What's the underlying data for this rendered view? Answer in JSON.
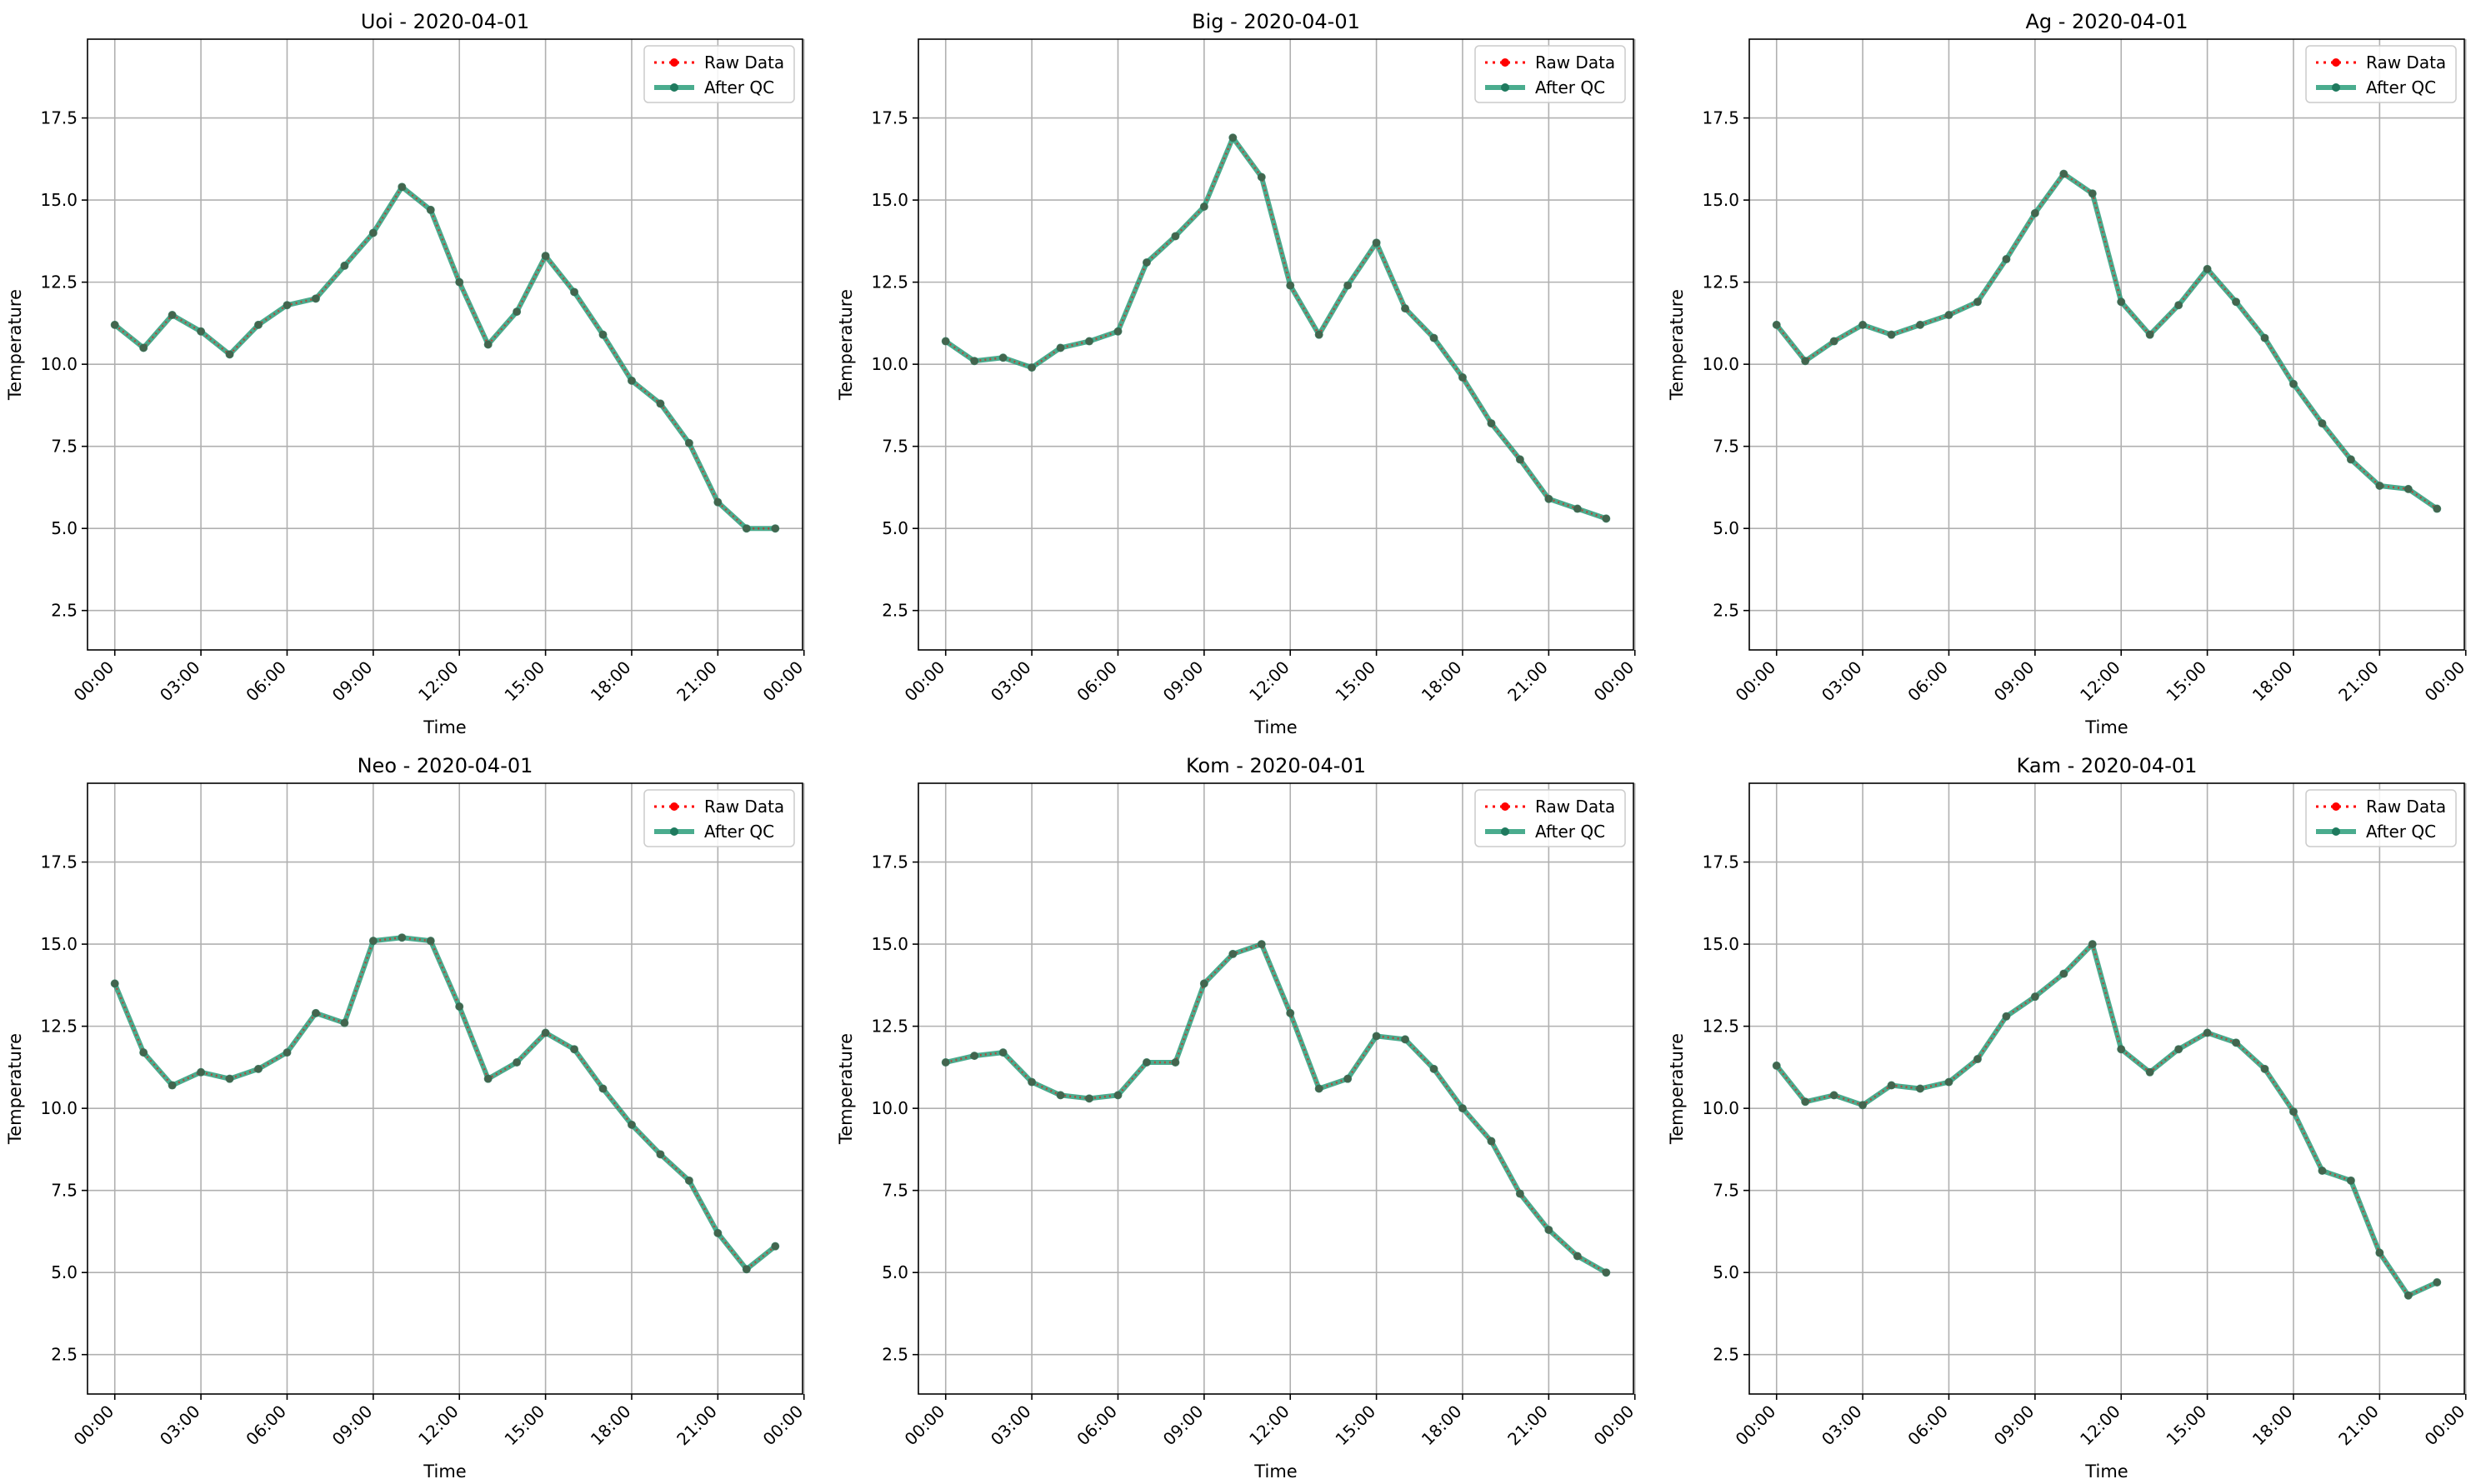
{
  "chart_data": [
    {
      "type": "line",
      "title": "Uoi - 2020-04-01",
      "xlabel": "Time",
      "ylabel": "Temperature",
      "xlim": [
        -0.95,
        23.95
      ],
      "ylim": [
        1.3,
        19.9
      ],
      "x_ticks": [
        0,
        3,
        6,
        9,
        12,
        15,
        18,
        21,
        24
      ],
      "x_tick_labels": [
        "00:00",
        "03:00",
        "06:00",
        "09:00",
        "12:00",
        "15:00",
        "18:00",
        "21:00",
        "00:00"
      ],
      "y_ticks": [
        2.5,
        5.0,
        7.5,
        10.0,
        12.5,
        15.0,
        17.5
      ],
      "y_tick_labels": [
        "2.5",
        "5.0",
        "7.5",
        "10.0",
        "12.5",
        "15.0",
        "17.5"
      ],
      "grid": true,
      "legend": "upper right",
      "x": [
        0,
        1,
        2,
        3,
        4,
        5,
        6,
        7,
        8,
        9,
        10,
        11,
        12,
        13,
        14,
        15,
        16,
        17,
        18,
        19,
        20,
        21,
        22,
        23
      ],
      "series": [
        {
          "name": "Raw Data",
          "color": "#ff0000",
          "style": "dotted",
          "values": [
            11.2,
            10.5,
            11.5,
            11.0,
            10.3,
            11.2,
            11.8,
            12.0,
            13.0,
            14.0,
            15.4,
            14.7,
            12.5,
            10.6,
            11.6,
            13.3,
            12.2,
            10.9,
            9.5,
            8.8,
            7.6,
            5.8,
            5.0,
            5.0
          ]
        },
        {
          "name": "After QC",
          "color": "#2a9d7a",
          "style": "solid",
          "values": [
            11.2,
            10.5,
            11.5,
            11.0,
            10.3,
            11.2,
            11.8,
            12.0,
            13.0,
            14.0,
            15.4,
            14.7,
            12.5,
            10.6,
            11.6,
            13.3,
            12.2,
            10.9,
            9.5,
            8.8,
            7.6,
            5.8,
            5.0,
            5.0
          ]
        }
      ]
    },
    {
      "type": "line",
      "title": "Big - 2020-04-01",
      "xlabel": "Time",
      "ylabel": "Temperature",
      "xlim": [
        -0.95,
        23.95
      ],
      "ylim": [
        1.3,
        19.9
      ],
      "x_ticks": [
        0,
        3,
        6,
        9,
        12,
        15,
        18,
        21,
        24
      ],
      "x_tick_labels": [
        "00:00",
        "03:00",
        "06:00",
        "09:00",
        "12:00",
        "15:00",
        "18:00",
        "21:00",
        "00:00"
      ],
      "y_ticks": [
        2.5,
        5.0,
        7.5,
        10.0,
        12.5,
        15.0,
        17.5
      ],
      "y_tick_labels": [
        "2.5",
        "5.0",
        "7.5",
        "10.0",
        "12.5",
        "15.0",
        "17.5"
      ],
      "grid": true,
      "legend": "upper right",
      "x": [
        0,
        1,
        2,
        3,
        4,
        5,
        6,
        7,
        8,
        9,
        10,
        11,
        12,
        13,
        14,
        15,
        16,
        17,
        18,
        19,
        20,
        21,
        22,
        23
      ],
      "series": [
        {
          "name": "Raw Data",
          "color": "#ff0000",
          "style": "dotted",
          "values": [
            10.7,
            10.1,
            10.2,
            9.9,
            10.5,
            10.7,
            11.0,
            13.1,
            13.9,
            14.8,
            16.9,
            15.7,
            12.4,
            10.9,
            12.4,
            13.7,
            11.7,
            10.8,
            9.6,
            8.2,
            7.1,
            5.9,
            5.6,
            5.3
          ]
        },
        {
          "name": "After QC",
          "color": "#2a9d7a",
          "style": "solid",
          "values": [
            10.7,
            10.1,
            10.2,
            9.9,
            10.5,
            10.7,
            11.0,
            13.1,
            13.9,
            14.8,
            16.9,
            15.7,
            12.4,
            10.9,
            12.4,
            13.7,
            11.7,
            10.8,
            9.6,
            8.2,
            7.1,
            5.9,
            5.6,
            5.3
          ]
        }
      ]
    },
    {
      "type": "line",
      "title": "Ag - 2020-04-01",
      "xlabel": "Time",
      "ylabel": "Temperature",
      "xlim": [
        -0.95,
        23.95
      ],
      "ylim": [
        1.3,
        19.9
      ],
      "x_ticks": [
        0,
        3,
        6,
        9,
        12,
        15,
        18,
        21,
        24
      ],
      "x_tick_labels": [
        "00:00",
        "03:00",
        "06:00",
        "09:00",
        "12:00",
        "15:00",
        "18:00",
        "21:00",
        "00:00"
      ],
      "y_ticks": [
        2.5,
        5.0,
        7.5,
        10.0,
        12.5,
        15.0,
        17.5
      ],
      "y_tick_labels": [
        "2.5",
        "5.0",
        "7.5",
        "10.0",
        "12.5",
        "15.0",
        "17.5"
      ],
      "grid": true,
      "legend": "upper right",
      "x": [
        0,
        1,
        2,
        3,
        4,
        5,
        6,
        7,
        8,
        9,
        10,
        11,
        12,
        13,
        14,
        15,
        16,
        17,
        18,
        19,
        20,
        21,
        22,
        23
      ],
      "series": [
        {
          "name": "Raw Data",
          "color": "#ff0000",
          "style": "dotted",
          "values": [
            11.2,
            10.1,
            10.7,
            11.2,
            10.9,
            11.2,
            11.5,
            11.9,
            13.2,
            14.6,
            15.8,
            15.2,
            11.9,
            10.9,
            11.8,
            12.9,
            11.9,
            10.8,
            9.4,
            8.2,
            7.1,
            6.3,
            6.2,
            5.6
          ]
        },
        {
          "name": "After QC",
          "color": "#2a9d7a",
          "style": "solid",
          "values": [
            11.2,
            10.1,
            10.7,
            11.2,
            10.9,
            11.2,
            11.5,
            11.9,
            13.2,
            14.6,
            15.8,
            15.2,
            11.9,
            10.9,
            11.8,
            12.9,
            11.9,
            10.8,
            9.4,
            8.2,
            7.1,
            6.3,
            6.2,
            5.6
          ]
        }
      ]
    },
    {
      "type": "line",
      "title": "Neo - 2020-04-01",
      "xlabel": "Time",
      "ylabel": "Temperature",
      "xlim": [
        -0.95,
        23.95
      ],
      "ylim": [
        1.3,
        19.9
      ],
      "x_ticks": [
        0,
        3,
        6,
        9,
        12,
        15,
        18,
        21,
        24
      ],
      "x_tick_labels": [
        "00:00",
        "03:00",
        "06:00",
        "09:00",
        "12:00",
        "15:00",
        "18:00",
        "21:00",
        "00:00"
      ],
      "y_ticks": [
        2.5,
        5.0,
        7.5,
        10.0,
        12.5,
        15.0,
        17.5
      ],
      "y_tick_labels": [
        "2.5",
        "5.0",
        "7.5",
        "10.0",
        "12.5",
        "15.0",
        "17.5"
      ],
      "grid": true,
      "legend": "upper right",
      "x": [
        0,
        1,
        2,
        3,
        4,
        5,
        6,
        7,
        8,
        9,
        10,
        11,
        12,
        13,
        14,
        15,
        16,
        17,
        18,
        19,
        20,
        21,
        22,
        23
      ],
      "series": [
        {
          "name": "Raw Data",
          "color": "#ff0000",
          "style": "dotted",
          "values": [
            13.8,
            11.7,
            10.7,
            11.1,
            10.9,
            11.2,
            11.7,
            12.9,
            12.6,
            15.1,
            15.2,
            15.1,
            13.1,
            10.9,
            11.4,
            12.3,
            11.8,
            10.6,
            9.5,
            8.6,
            7.8,
            6.2,
            5.1,
            5.8
          ]
        },
        {
          "name": "After QC",
          "color": "#2a9d7a",
          "style": "solid",
          "values": [
            13.8,
            11.7,
            10.7,
            11.1,
            10.9,
            11.2,
            11.7,
            12.9,
            12.6,
            15.1,
            15.2,
            15.1,
            13.1,
            10.9,
            11.4,
            12.3,
            11.8,
            10.6,
            9.5,
            8.6,
            7.8,
            6.2,
            5.1,
            5.8
          ]
        }
      ]
    },
    {
      "type": "line",
      "title": "Kom - 2020-04-01",
      "xlabel": "Time",
      "ylabel": "Temperature",
      "xlim": [
        -0.95,
        23.95
      ],
      "ylim": [
        1.3,
        19.9
      ],
      "x_ticks": [
        0,
        3,
        6,
        9,
        12,
        15,
        18,
        21,
        24
      ],
      "x_tick_labels": [
        "00:00",
        "03:00",
        "06:00",
        "09:00",
        "12:00",
        "15:00",
        "18:00",
        "21:00",
        "00:00"
      ],
      "y_ticks": [
        2.5,
        5.0,
        7.5,
        10.0,
        12.5,
        15.0,
        17.5
      ],
      "y_tick_labels": [
        "2.5",
        "5.0",
        "7.5",
        "10.0",
        "12.5",
        "15.0",
        "17.5"
      ],
      "grid": true,
      "legend": "upper right",
      "x": [
        0,
        1,
        2,
        3,
        4,
        5,
        6,
        7,
        8,
        9,
        10,
        11,
        12,
        13,
        14,
        15,
        16,
        17,
        18,
        19,
        20,
        21,
        22,
        23
      ],
      "series": [
        {
          "name": "Raw Data",
          "color": "#ff0000",
          "style": "dotted",
          "values": [
            11.4,
            11.6,
            11.7,
            10.8,
            10.4,
            10.3,
            10.4,
            11.4,
            11.4,
            13.8,
            14.7,
            15.0,
            12.9,
            10.6,
            10.9,
            12.2,
            12.1,
            11.2,
            10.0,
            9.0,
            7.4,
            6.3,
            5.5,
            5.0
          ]
        },
        {
          "name": "After QC",
          "color": "#2a9d7a",
          "style": "solid",
          "values": [
            11.4,
            11.6,
            11.7,
            10.8,
            10.4,
            10.3,
            10.4,
            11.4,
            11.4,
            13.8,
            14.7,
            15.0,
            12.9,
            10.6,
            10.9,
            12.2,
            12.1,
            11.2,
            10.0,
            9.0,
            7.4,
            6.3,
            5.5,
            5.0
          ]
        }
      ]
    },
    {
      "type": "line",
      "title": "Kam - 2020-04-01",
      "xlabel": "Time",
      "ylabel": "Temperature",
      "xlim": [
        -0.95,
        23.95
      ],
      "ylim": [
        1.3,
        19.9
      ],
      "x_ticks": [
        0,
        3,
        6,
        9,
        12,
        15,
        18,
        21,
        24
      ],
      "x_tick_labels": [
        "00:00",
        "03:00",
        "06:00",
        "09:00",
        "12:00",
        "15:00",
        "18:00",
        "21:00",
        "00:00"
      ],
      "y_ticks": [
        2.5,
        5.0,
        7.5,
        10.0,
        12.5,
        15.0,
        17.5
      ],
      "y_tick_labels": [
        "2.5",
        "5.0",
        "7.5",
        "10.0",
        "12.5",
        "15.0",
        "17.5"
      ],
      "grid": true,
      "legend": "upper right",
      "x": [
        0,
        1,
        2,
        3,
        4,
        5,
        6,
        7,
        8,
        9,
        10,
        11,
        12,
        13,
        14,
        15,
        16,
        17,
        18,
        19,
        20,
        21,
        22,
        23
      ],
      "series": [
        {
          "name": "Raw Data",
          "color": "#ff0000",
          "style": "dotted",
          "values": [
            11.3,
            10.2,
            10.4,
            10.1,
            10.7,
            10.6,
            10.8,
            11.5,
            12.8,
            13.4,
            14.1,
            15.0,
            11.8,
            11.1,
            11.8,
            12.3,
            12.0,
            11.2,
            9.9,
            8.1,
            7.8,
            5.6,
            4.3,
            4.7
          ]
        },
        {
          "name": "After QC",
          "color": "#2a9d7a",
          "style": "solid",
          "values": [
            11.3,
            10.2,
            10.4,
            10.1,
            10.7,
            10.6,
            10.8,
            11.5,
            12.8,
            13.4,
            14.1,
            15.0,
            11.8,
            11.1,
            11.8,
            12.3,
            12.0,
            11.2,
            9.9,
            8.1,
            7.8,
            5.6,
            4.3,
            4.7
          ]
        }
      ]
    }
  ]
}
